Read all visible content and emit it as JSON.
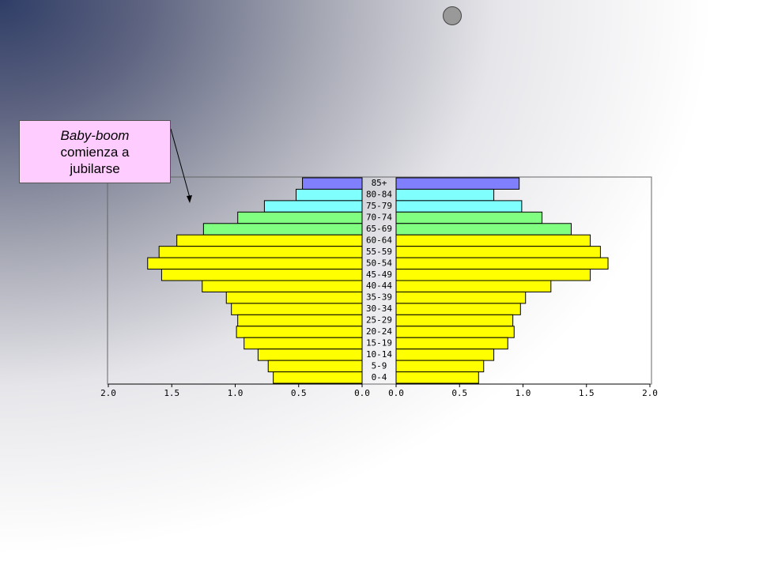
{
  "chart_data": {
    "type": "population_pyramid",
    "annotation": {
      "emphasis": "Baby-boom",
      "text": "comienza a jubilarse"
    },
    "categories": [
      "85+",
      "80-84",
      "75-79",
      "70-74",
      "65-69",
      "60-64",
      "55-59",
      "50-54",
      "45-49",
      "40-44",
      "35-39",
      "30-34",
      "25-29",
      "20-24",
      "15-19",
      "10-14",
      "5-9",
      "0-4"
    ],
    "colors": [
      "#8080ff",
      "#80ffff",
      "#80ffff",
      "#80ff80",
      "#80ff80",
      "#ffff00",
      "#ffff00",
      "#ffff00",
      "#ffff00",
      "#ffff00",
      "#ffff00",
      "#ffff00",
      "#ffff00",
      "#ffff00",
      "#ffff00",
      "#ffff00",
      "#ffff00",
      "#ffff00"
    ],
    "series": [
      {
        "side": "left",
        "values": [
          0.47,
          0.52,
          0.77,
          0.98,
          1.25,
          1.46,
          1.6,
          1.69,
          1.58,
          1.26,
          1.07,
          1.03,
          0.98,
          0.99,
          0.93,
          0.82,
          0.74,
          0.7
        ]
      },
      {
        "side": "right",
        "values": [
          0.97,
          0.77,
          0.99,
          1.15,
          1.38,
          1.53,
          1.61,
          1.67,
          1.53,
          1.22,
          1.02,
          0.98,
          0.92,
          0.93,
          0.88,
          0.77,
          0.69,
          0.65
        ]
      }
    ],
    "xlim": [
      0,
      2
    ],
    "xticks": [
      {
        "value": 0,
        "label": "0.0"
      },
      {
        "value": 0.5,
        "label": "0.5"
      },
      {
        "value": 1,
        "label": "1.0"
      },
      {
        "value": 1.5,
        "label": "1.5"
      },
      {
        "value": 2,
        "label": "2.0"
      }
    ]
  }
}
